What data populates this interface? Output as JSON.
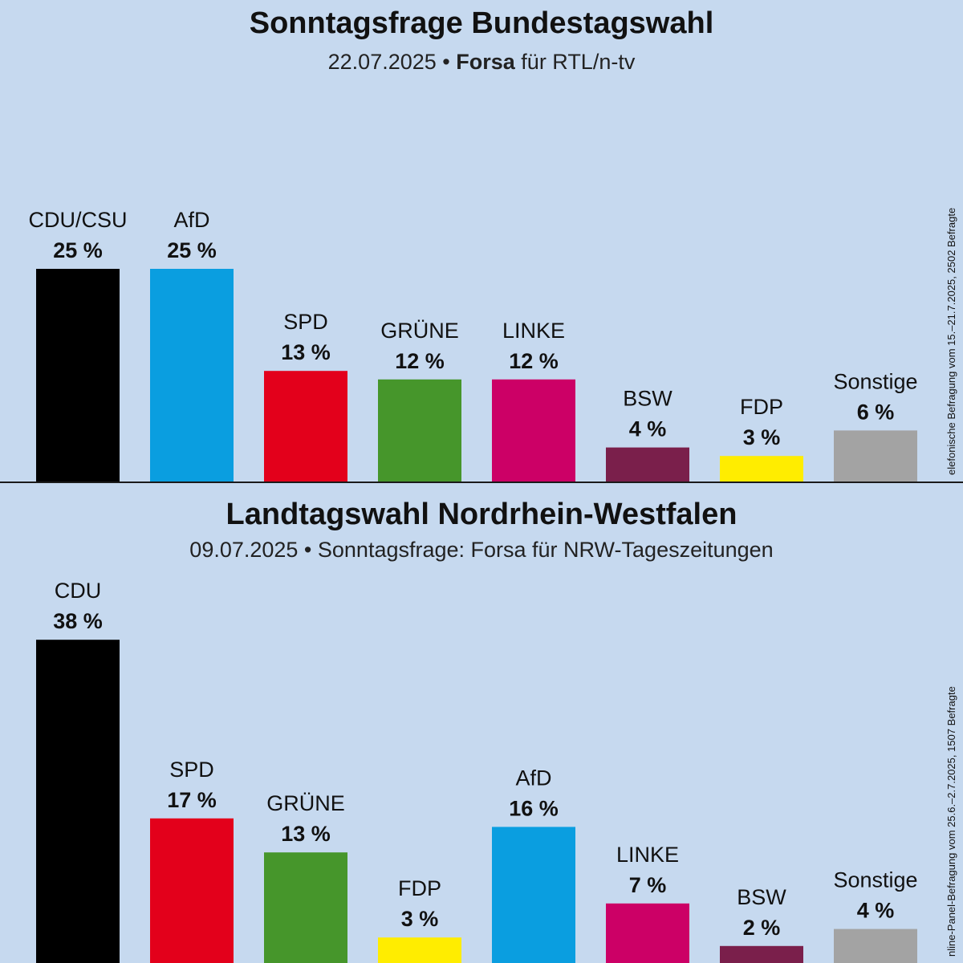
{
  "chart_data": [
    {
      "type": "bar",
      "title": "Sonntagsfrage Bundestagswahl",
      "subtitle": {
        "date": "22.07.2025 •",
        "institute": "Forsa",
        "client": "für RTL/n-tv"
      },
      "source_note": "elefonische Befragung vom 15.–21.7.2025, 2502 Befragte",
      "categories": [
        "CDU/CSU",
        "AfD",
        "SPD",
        "GRÜNE",
        "LINKE",
        "BSW",
        "FDP",
        "Sonstige"
      ],
      "values": [
        25,
        25,
        13,
        12,
        12,
        4,
        3,
        6
      ],
      "value_labels": [
        "25 %",
        "25 %",
        "13 %",
        "12 %",
        "12 %",
        "4 %",
        "3 %",
        "6 %"
      ],
      "colors": [
        "#000000",
        "#0a9ee0",
        "#e3001b",
        "#46962b",
        "#cc0066",
        "#7a1f4b",
        "#ffed00",
        "#a3a3a3"
      ],
      "unit": "%",
      "xlabel": "",
      "ylabel": ""
    },
    {
      "type": "bar",
      "title": "Landtagswahl Nordrhein-Westfalen",
      "subtitle": {
        "text": "09.07.2025 • Sonntagsfrage:  Forsa für NRW-Tageszeitungen"
      },
      "source_note": "nline-Panel-Befragung vom 25.6.–2.7.2025, 1507 Befragte",
      "categories": [
        "CDU",
        "SPD",
        "GRÜNE",
        "FDP",
        "AfD",
        "LINKE",
        "BSW",
        "Sonstige"
      ],
      "values": [
        38,
        17,
        13,
        3,
        16,
        7,
        2,
        4
      ],
      "value_labels": [
        "38 %",
        "17 %",
        "13 %",
        "3 %",
        "16 %",
        "7 %",
        "2 %",
        "4 %"
      ],
      "colors": [
        "#000000",
        "#e3001b",
        "#46962b",
        "#ffed00",
        "#0a9ee0",
        "#cc0066",
        "#7a1f4b",
        "#a3a3a3"
      ],
      "unit": "%",
      "xlabel": "",
      "ylabel": ""
    }
  ]
}
